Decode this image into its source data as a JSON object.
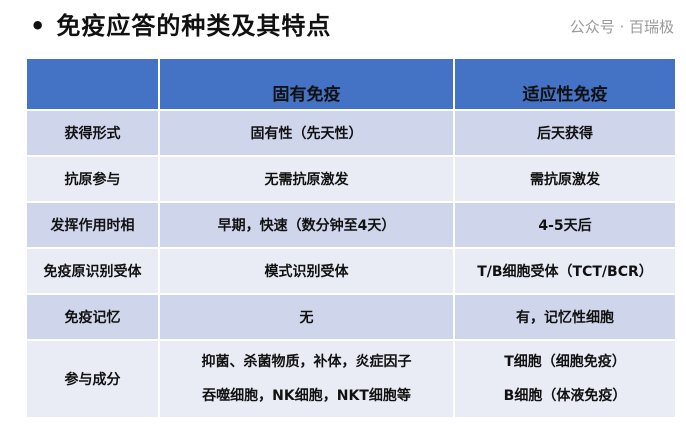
{
  "title": "免疫应答的种类及其特点",
  "bullet": "•",
  "headers": [
    "",
    "固有免疫",
    "适应性免疫"
  ],
  "rows": [
    {
      "label": "获得形式",
      "innate": [
        "固有性（先天性）"
      ],
      "adaptive": [
        "后天获得"
      ]
    },
    {
      "label": "抗原参与",
      "innate": [
        "无需抗原激发"
      ],
      "adaptive": [
        "需抗原激发"
      ]
    },
    {
      "label": "发挥作用时相",
      "innate": [
        "早期，快速（数分钟至4天）"
      ],
      "adaptive": [
        "4-5天后"
      ]
    },
    {
      "label": "免疫原识别受体",
      "innate": [
        "模式识别受体"
      ],
      "adaptive": [
        "T/B细胞受体（TCT/BCR）"
      ]
    },
    {
      "label": "免疫记忆",
      "innate": [
        "无"
      ],
      "adaptive": [
        "有，记忆性细胞"
      ]
    },
    {
      "label": "参与成分",
      "innate": [
        "抑菌、杀菌物质，补体，炎症因子",
        "吞噬细胞，NK细胞，NKT细胞等"
      ],
      "adaptive": [
        "T细胞（细胞免疫）",
        "B细胞（体液免疫）"
      ]
    }
  ],
  "watermark": "公众号 · 百瑞极",
  "colors": {
    "header": "#4472c4",
    "row_odd": "#cfd5ea",
    "row_even": "#e9ebf5"
  }
}
